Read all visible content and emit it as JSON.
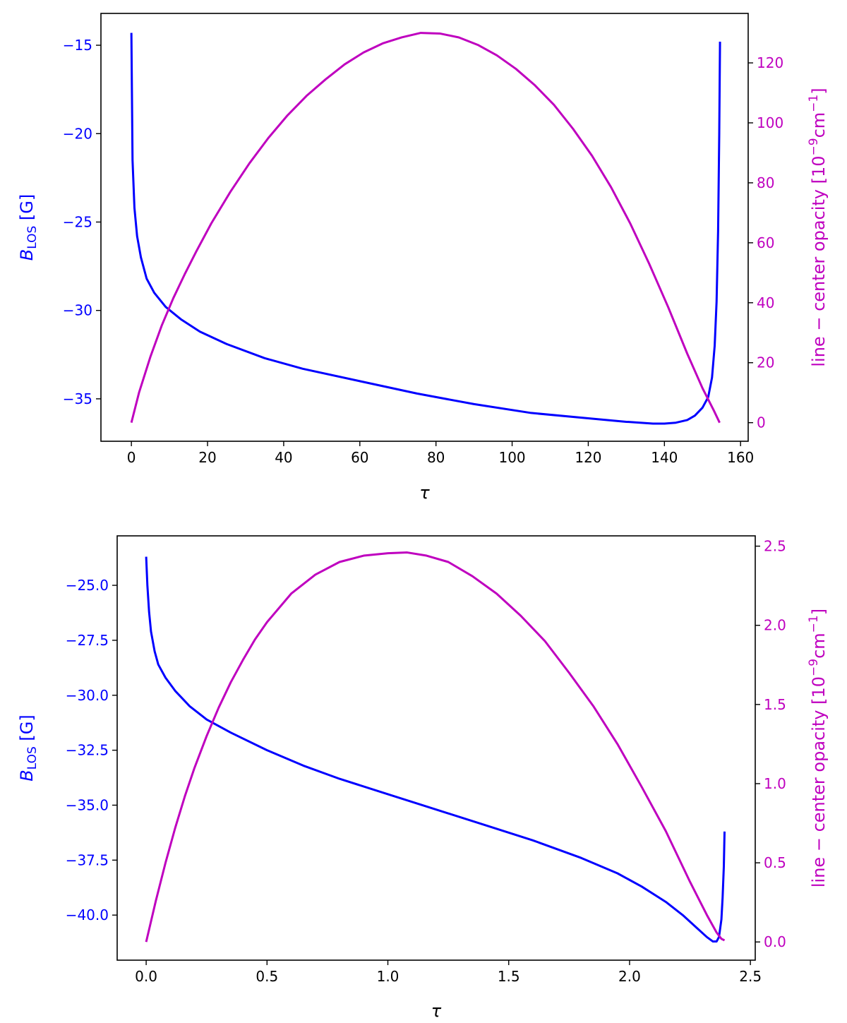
{
  "chart_data": [
    {
      "type": "line",
      "xlabel": "τ",
      "ylabel_left": {
        "main": "B",
        "sub": "LOS",
        "unit": " [G]"
      },
      "ylabel_right": {
        "prefix": "line − center opacity [10",
        "sup1": "−9",
        "mid": "cm",
        "sup2": "−1",
        "suffix": "]"
      },
      "xlim": [
        -8,
        162
      ],
      "ylim_left": [
        -37.4,
        -13.2
      ],
      "ylim_right": [
        -6.2,
        136.5
      ],
      "xticks": [
        0,
        20,
        40,
        60,
        80,
        100,
        120,
        140,
        160
      ],
      "xtick_labels": [
        "0",
        "20",
        "40",
        "60",
        "80",
        "100",
        "120",
        "140",
        "160"
      ],
      "yticks_left": [
        -15,
        -20,
        -25,
        -30,
        -35
      ],
      "ytick_labels_left": [
        "−15",
        "−20",
        "−25",
        "−30",
        "−35"
      ],
      "yticks_right": [
        0,
        20,
        40,
        60,
        80,
        100,
        120
      ],
      "ytick_labels_right": [
        "0",
        "20",
        "40",
        "60",
        "80",
        "100",
        "120"
      ],
      "grid": false,
      "colors": {
        "left": "#0000ff",
        "right": "#bf00bf"
      },
      "series": [
        {
          "axis": "left",
          "x": [
            0,
            0.3,
            0.8,
            1.5,
            2.5,
            4,
            6,
            9,
            13,
            18,
            25,
            35,
            45,
            60,
            75,
            90,
            105,
            120,
            130,
            137,
            140,
            143,
            146,
            148,
            150,
            151.5,
            152.5,
            153.2,
            153.7,
            154.1,
            154.4,
            154.6
          ],
          "y": [
            -14.3,
            -21.5,
            -24.2,
            -25.8,
            -27.0,
            -28.2,
            -29.0,
            -29.8,
            -30.5,
            -31.2,
            -31.9,
            -32.7,
            -33.3,
            -34.0,
            -34.7,
            -35.3,
            -35.8,
            -36.1,
            -36.3,
            -36.4,
            -36.4,
            -36.35,
            -36.2,
            -35.95,
            -35.5,
            -34.9,
            -33.8,
            -32.0,
            -29.5,
            -25.5,
            -20.0,
            -14.8
          ]
        },
        {
          "axis": "right",
          "x": [
            0,
            2,
            5,
            8,
            11,
            14,
            17,
            21,
            26,
            31,
            36,
            41,
            46,
            51,
            56,
            61,
            66,
            71,
            76,
            81,
            86,
            91,
            96,
            101,
            106,
            111,
            116,
            121,
            126,
            131,
            136,
            141,
            146,
            150,
            153,
            154.5
          ],
          "y": [
            0,
            10,
            22,
            32.5,
            41.5,
            49.5,
            57,
            66.5,
            77,
            86.5,
            95,
            102.5,
            109,
            114.5,
            119.5,
            123.5,
            126.5,
            128.5,
            130,
            129.8,
            128.5,
            126,
            122.5,
            118,
            112.5,
            106,
            98,
            89,
            78.5,
            66.5,
            53,
            38.5,
            23,
            11.5,
            4,
            0
          ]
        }
      ]
    },
    {
      "type": "line",
      "xlabel": "τ",
      "ylabel_left": {
        "main": "B",
        "sub": "LOS",
        "unit": " [G]"
      },
      "ylabel_right": {
        "prefix": "line − center opacity [10",
        "sup1": "−9",
        "mid": "cm",
        "sup2": "−1",
        "suffix": "]"
      },
      "xlim": [
        -0.12,
        2.52
      ],
      "ylim_left": [
        -42.05,
        -22.75
      ],
      "ylim_right": [
        -0.115,
        2.565
      ],
      "xticks": [
        0.0,
        0.5,
        1.0,
        1.5,
        2.0,
        2.5
      ],
      "xtick_labels": [
        "0.0",
        "0.5",
        "1.0",
        "1.5",
        "2.0",
        "2.5"
      ],
      "yticks_left": [
        -25.0,
        -27.5,
        -30.0,
        -32.5,
        -35.0,
        -37.5,
        -40.0
      ],
      "ytick_labels_left": [
        "−25.0",
        "−27.5",
        "−30.0",
        "−32.5",
        "−35.0",
        "−37.5",
        "−40.0"
      ],
      "yticks_right": [
        0.0,
        0.5,
        1.0,
        1.5,
        2.0,
        2.5
      ],
      "ytick_labels_right": [
        "0.0",
        "0.5",
        "1.0",
        "1.5",
        "2.0",
        "2.5"
      ],
      "grid": false,
      "colors": {
        "left": "#0000ff",
        "right": "#bf00bf"
      },
      "series": [
        {
          "axis": "left",
          "x": [
            0,
            0.005,
            0.012,
            0.02,
            0.035,
            0.05,
            0.08,
            0.12,
            0.18,
            0.25,
            0.35,
            0.5,
            0.65,
            0.8,
            1.0,
            1.2,
            1.4,
            1.6,
            1.8,
            1.95,
            2.05,
            2.15,
            2.22,
            2.28,
            2.32,
            2.345,
            2.36,
            2.37,
            2.38,
            2.385,
            2.39,
            2.393
          ],
          "y": [
            -23.7,
            -25.0,
            -26.2,
            -27.1,
            -28.0,
            -28.6,
            -29.2,
            -29.8,
            -30.5,
            -31.1,
            -31.7,
            -32.5,
            -33.2,
            -33.8,
            -34.5,
            -35.2,
            -35.9,
            -36.6,
            -37.4,
            -38.1,
            -38.7,
            -39.4,
            -40.0,
            -40.6,
            -41.0,
            -41.2,
            -41.2,
            -41.0,
            -40.2,
            -39.2,
            -37.8,
            -36.2
          ]
        },
        {
          "axis": "right",
          "x": [
            0,
            0.04,
            0.08,
            0.12,
            0.16,
            0.2,
            0.25,
            0.3,
            0.35,
            0.4,
            0.45,
            0.5,
            0.6,
            0.7,
            0.8,
            0.9,
            1.0,
            1.08,
            1.16,
            1.25,
            1.35,
            1.45,
            1.55,
            1.65,
            1.75,
            1.85,
            1.95,
            2.05,
            2.15,
            2.25,
            2.32,
            2.36,
            2.38,
            2.393
          ],
          "y": [
            0,
            0.26,
            0.5,
            0.72,
            0.92,
            1.1,
            1.3,
            1.48,
            1.64,
            1.78,
            1.91,
            2.02,
            2.2,
            2.32,
            2.4,
            2.44,
            2.455,
            2.46,
            2.44,
            2.4,
            2.31,
            2.2,
            2.06,
            1.9,
            1.7,
            1.49,
            1.25,
            0.98,
            0.7,
            0.38,
            0.17,
            0.06,
            0.02,
            0.01
          ]
        }
      ]
    }
  ]
}
